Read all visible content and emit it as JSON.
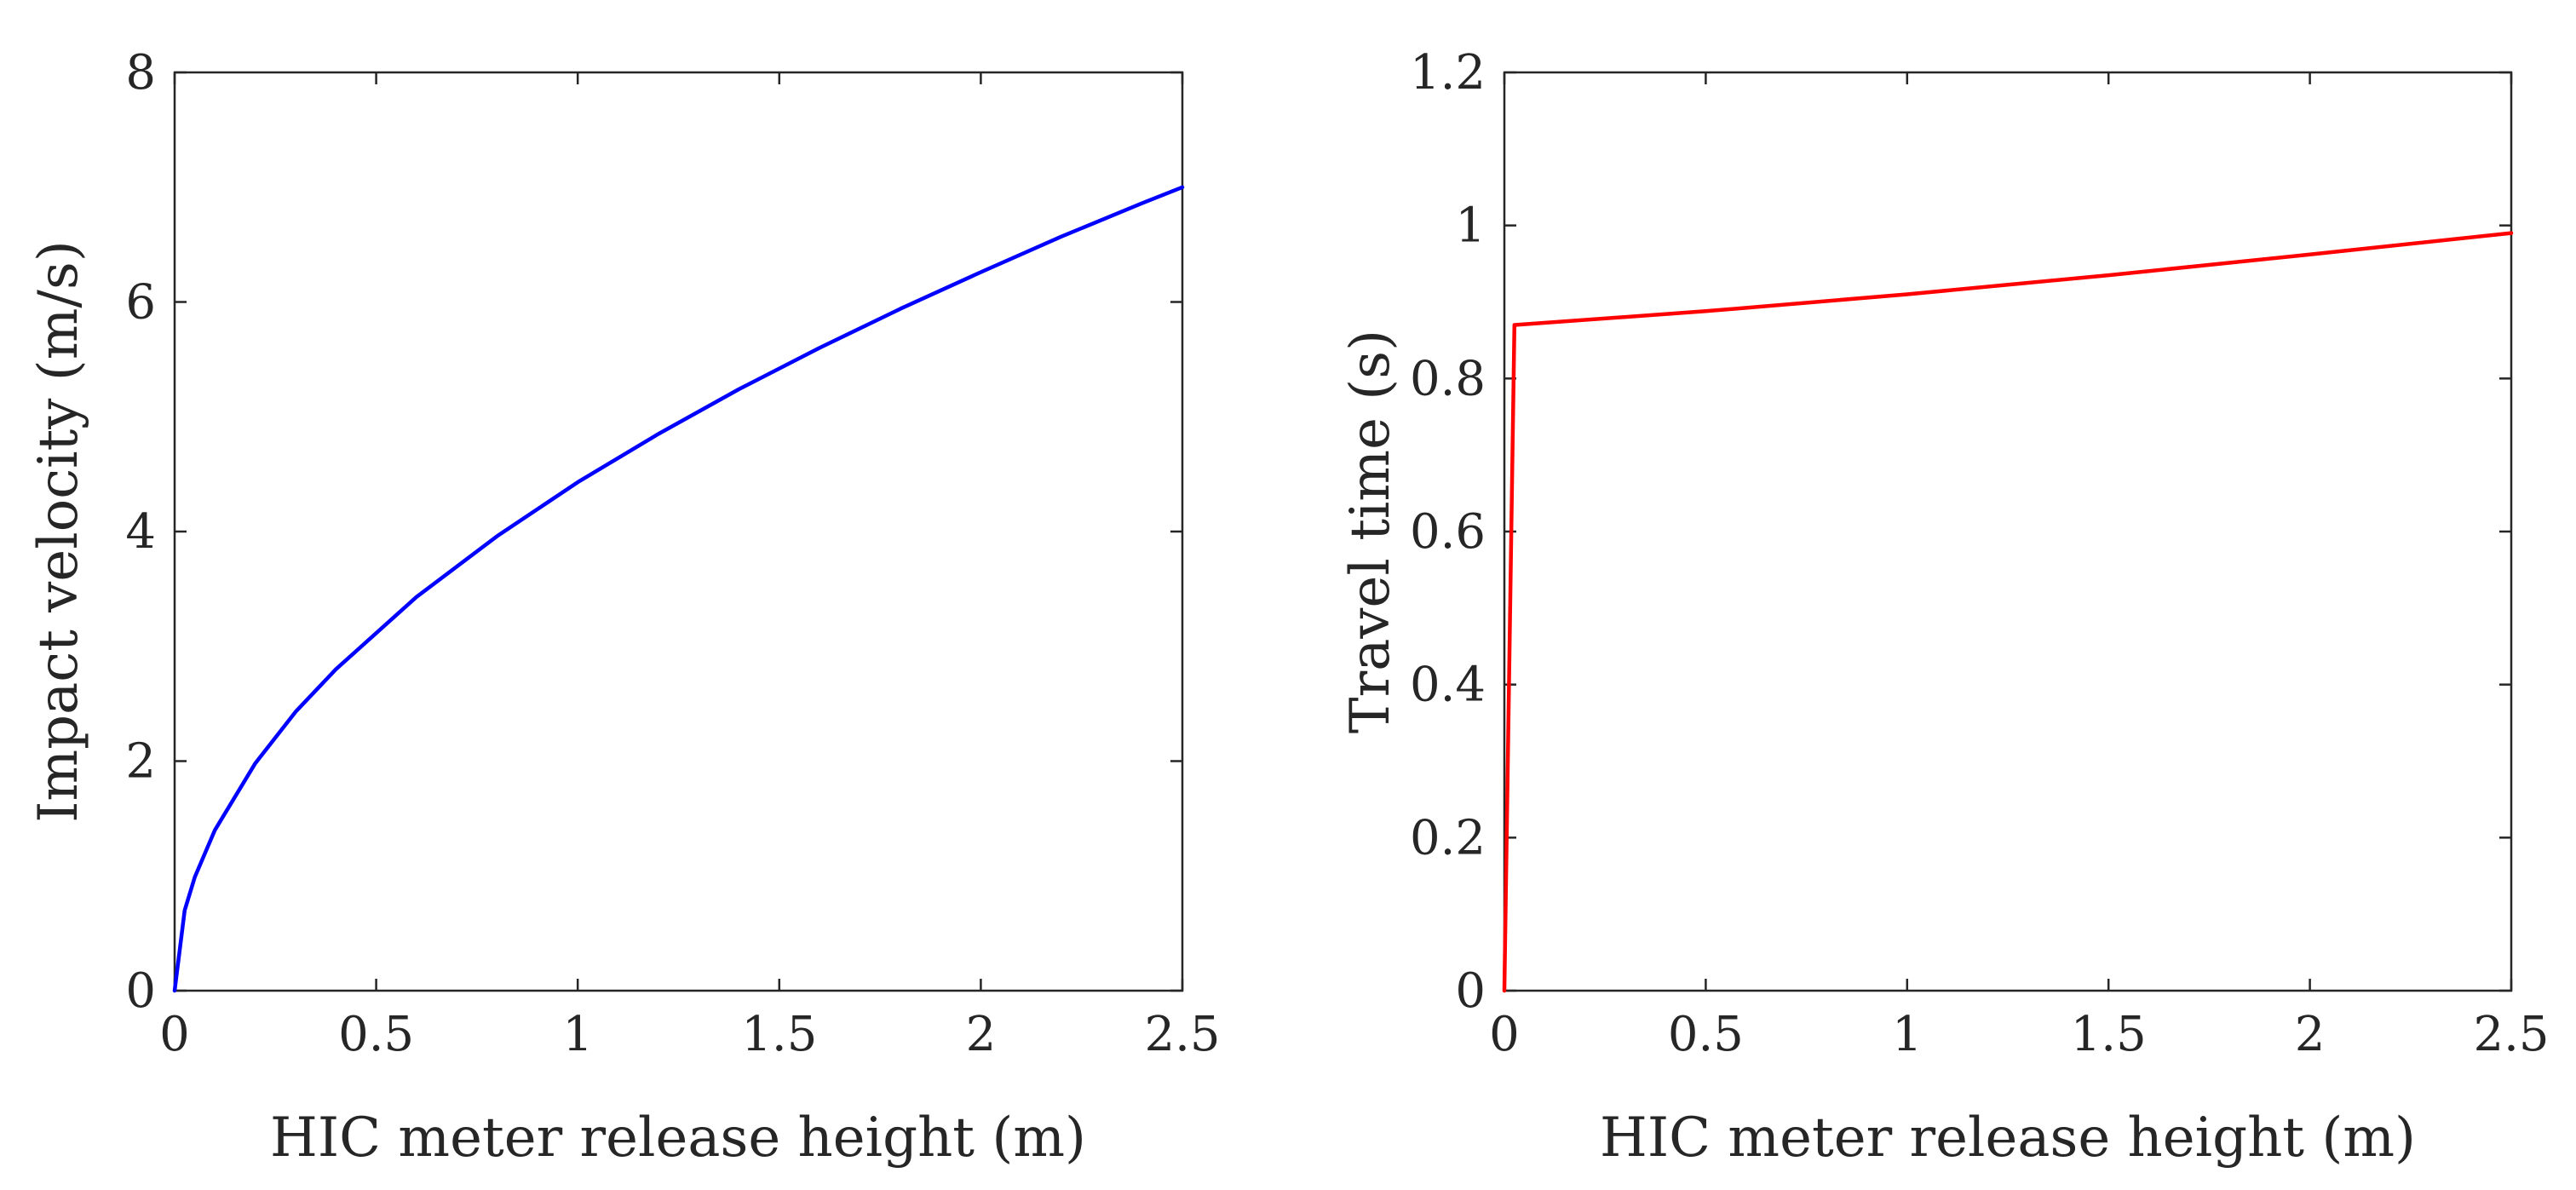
{
  "chart_data": [
    {
      "type": "line",
      "title": "",
      "xlabel": "HIC meter release height (m)",
      "ylabel": "Impact velocity (m/s)",
      "xlim": [
        0,
        2.5
      ],
      "ylim": [
        0,
        8
      ],
      "xticks": [
        0,
        0.5,
        1,
        1.5,
        2,
        2.5
      ],
      "xtick_labels": [
        "0",
        "0.5",
        "1",
        "1.5",
        "2",
        "2.5"
      ],
      "yticks": [
        0,
        2,
        4,
        6,
        8
      ],
      "ytick_labels": [
        "0",
        "2",
        "4",
        "6",
        "8"
      ],
      "grid": false,
      "series": [
        {
          "name": "Impact velocity",
          "color": "#0000ff",
          "x": [
            0,
            0.025,
            0.05,
            0.1,
            0.2,
            0.3,
            0.4,
            0.6,
            0.8,
            1.0,
            1.2,
            1.4,
            1.6,
            1.8,
            2.0,
            2.2,
            2.4,
            2.5
          ],
          "y": [
            0,
            0.7,
            0.99,
            1.4,
            1.98,
            2.43,
            2.8,
            3.43,
            3.96,
            4.43,
            4.85,
            5.24,
            5.6,
            5.94,
            6.26,
            6.57,
            6.86,
            7.0
          ]
        }
      ]
    },
    {
      "type": "line",
      "title": "",
      "xlabel": "HIC meter release height (m)",
      "ylabel": "Travel time (s)",
      "xlim": [
        0,
        2.5
      ],
      "ylim": [
        0,
        1.2
      ],
      "xticks": [
        0,
        0.5,
        1,
        1.5,
        2,
        2.5
      ],
      "xtick_labels": [
        "0",
        "0.5",
        "1",
        "1.5",
        "2",
        "2.5"
      ],
      "yticks": [
        0,
        0.2,
        0.4,
        0.6,
        0.8,
        1,
        1.2
      ],
      "ytick_labels": [
        "0",
        "0.2",
        "0.4",
        "0.6",
        "0.8",
        "1",
        "1.2"
      ],
      "grid": false,
      "series": [
        {
          "name": "Travel time",
          "color": "#ff0000",
          "x": [
            0,
            0.025,
            0.5,
            1.0,
            1.5,
            2.0,
            2.5
          ],
          "y": [
            0,
            0.87,
            0.888,
            0.91,
            0.935,
            0.962,
            0.99
          ]
        }
      ]
    }
  ]
}
